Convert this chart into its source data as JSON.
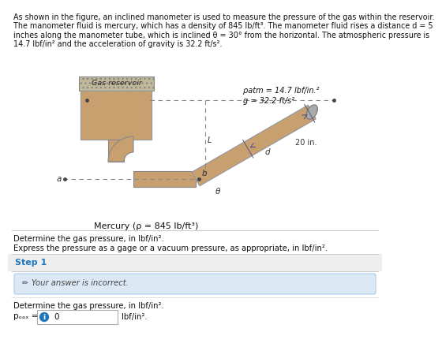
{
  "line1": "As shown in the figure, an inclined manometer is used to measure the pressure of the gas within the reservoir.",
  "line2": "The manometer fluid is mercury, which has a density of 845 lb/ft³. The manometer fluid rises a distance d = 5",
  "line3": "inches along the manometer tube, which is inclined θ = 30° from the horizontal. The atmospheric pressure is",
  "line4": "14.7 lbf/in² and the acceleration of gravity is 32.2 ft/s².",
  "patm_label": "ρatm = 14.7 lbf/in.²",
  "g_label": "g = 32.2 ft/s²",
  "mercury_label": "Mercury (ρ = 845 lb/ft³)",
  "gas_reservoir_label": "Gas reservoir",
  "distance_label": "20 in.",
  "theta_label": "θ",
  "a_label": "a",
  "b_label": "b",
  "d_label": "d",
  "L_label": "L",
  "determine_line1": "Determine the gas pressure, in lbf/in².",
  "determine_line2": "Express the pressure as a gage or a vacuum pressure, as appropriate, in lbf/in².",
  "step1_label": "Step 1",
  "incorrect_text": "Your answer is incorrect.",
  "pgas_text": "Determine the gas pressure, in lbf/in².",
  "pgas_label": "pₒₐₓ =",
  "pgas_value": "0",
  "unit_label": "lbf/in².",
  "bg_color": "#ffffff",
  "step_bg": "#eeeeee",
  "incorrect_bg": "#dce9f5",
  "step1_color": "#2277bb",
  "reservoir_fill": "#c8a070",
  "reservoir_border": "#999999",
  "wall_fill": "#c0b090",
  "tube_fill": "#c8a070",
  "dashed_line_color": "#888888",
  "inclined_tube_fill": "#c8a070",
  "inclined_tube_border": "#999999",
  "tube_border": "#888888",
  "dim_line_color": "#555588"
}
